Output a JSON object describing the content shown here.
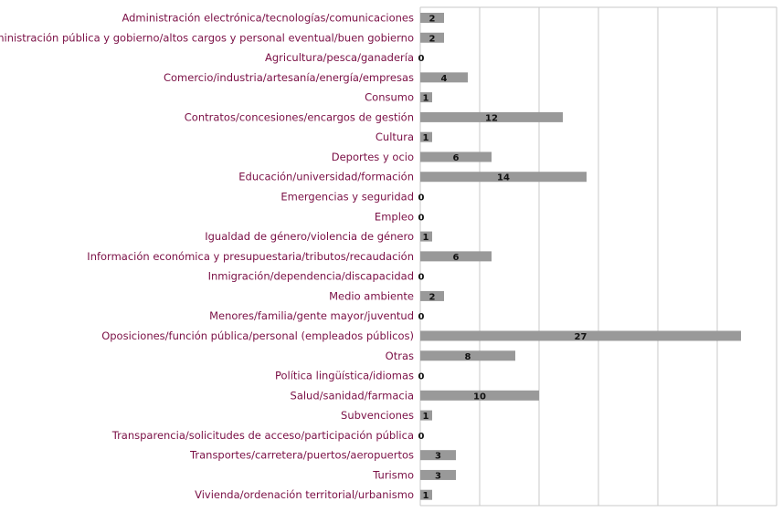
{
  "chart_data": {
    "type": "bar",
    "orientation": "horizontal",
    "grid": true,
    "xlim": [
      0,
      30
    ],
    "categories": [
      "Administración electrónica/tecnologías/comunicaciones",
      "Administración pública y gobierno/altos cargos y personal eventual/buen gobierno",
      "Agricultura/pesca/ganadería",
      "Comercio/industria/artesanía/energía/empresas",
      "Consumo",
      "Contratos/concesiones/encargos de gestión",
      "Cultura",
      "Deportes y ocio",
      "Educación/universidad/formación",
      "Emergencias y seguridad",
      "Empleo",
      "Igualdad de género/violencia de género",
      "Información económica y presupuestaria/tributos/recaudación",
      "Inmigración/dependencia/discapacidad",
      "Medio ambiente",
      "Menores/familia/gente mayor/juventud",
      "Oposiciones/función pública/personal (empleados públicos)",
      "Otras",
      "Política lingüística/idiomas",
      "Salud/sanidad/farmacia",
      "Subvenciones",
      "Transparencia/solicitudes de acceso/participación pública",
      "Transportes/carretera/puertos/aeropuertos",
      "Turismo",
      "Vivienda/ordenación territorial/urbanismo"
    ],
    "values": [
      2,
      2,
      0,
      4,
      1,
      12,
      1,
      6,
      14,
      0,
      0,
      1,
      6,
      0,
      2,
      0,
      27,
      8,
      0,
      10,
      1,
      0,
      3,
      3,
      1
    ],
    "colors": {
      "bar": "#999999",
      "label": "#7a0f45",
      "grid": "#c8c8c8",
      "value_text": "#111111"
    }
  }
}
